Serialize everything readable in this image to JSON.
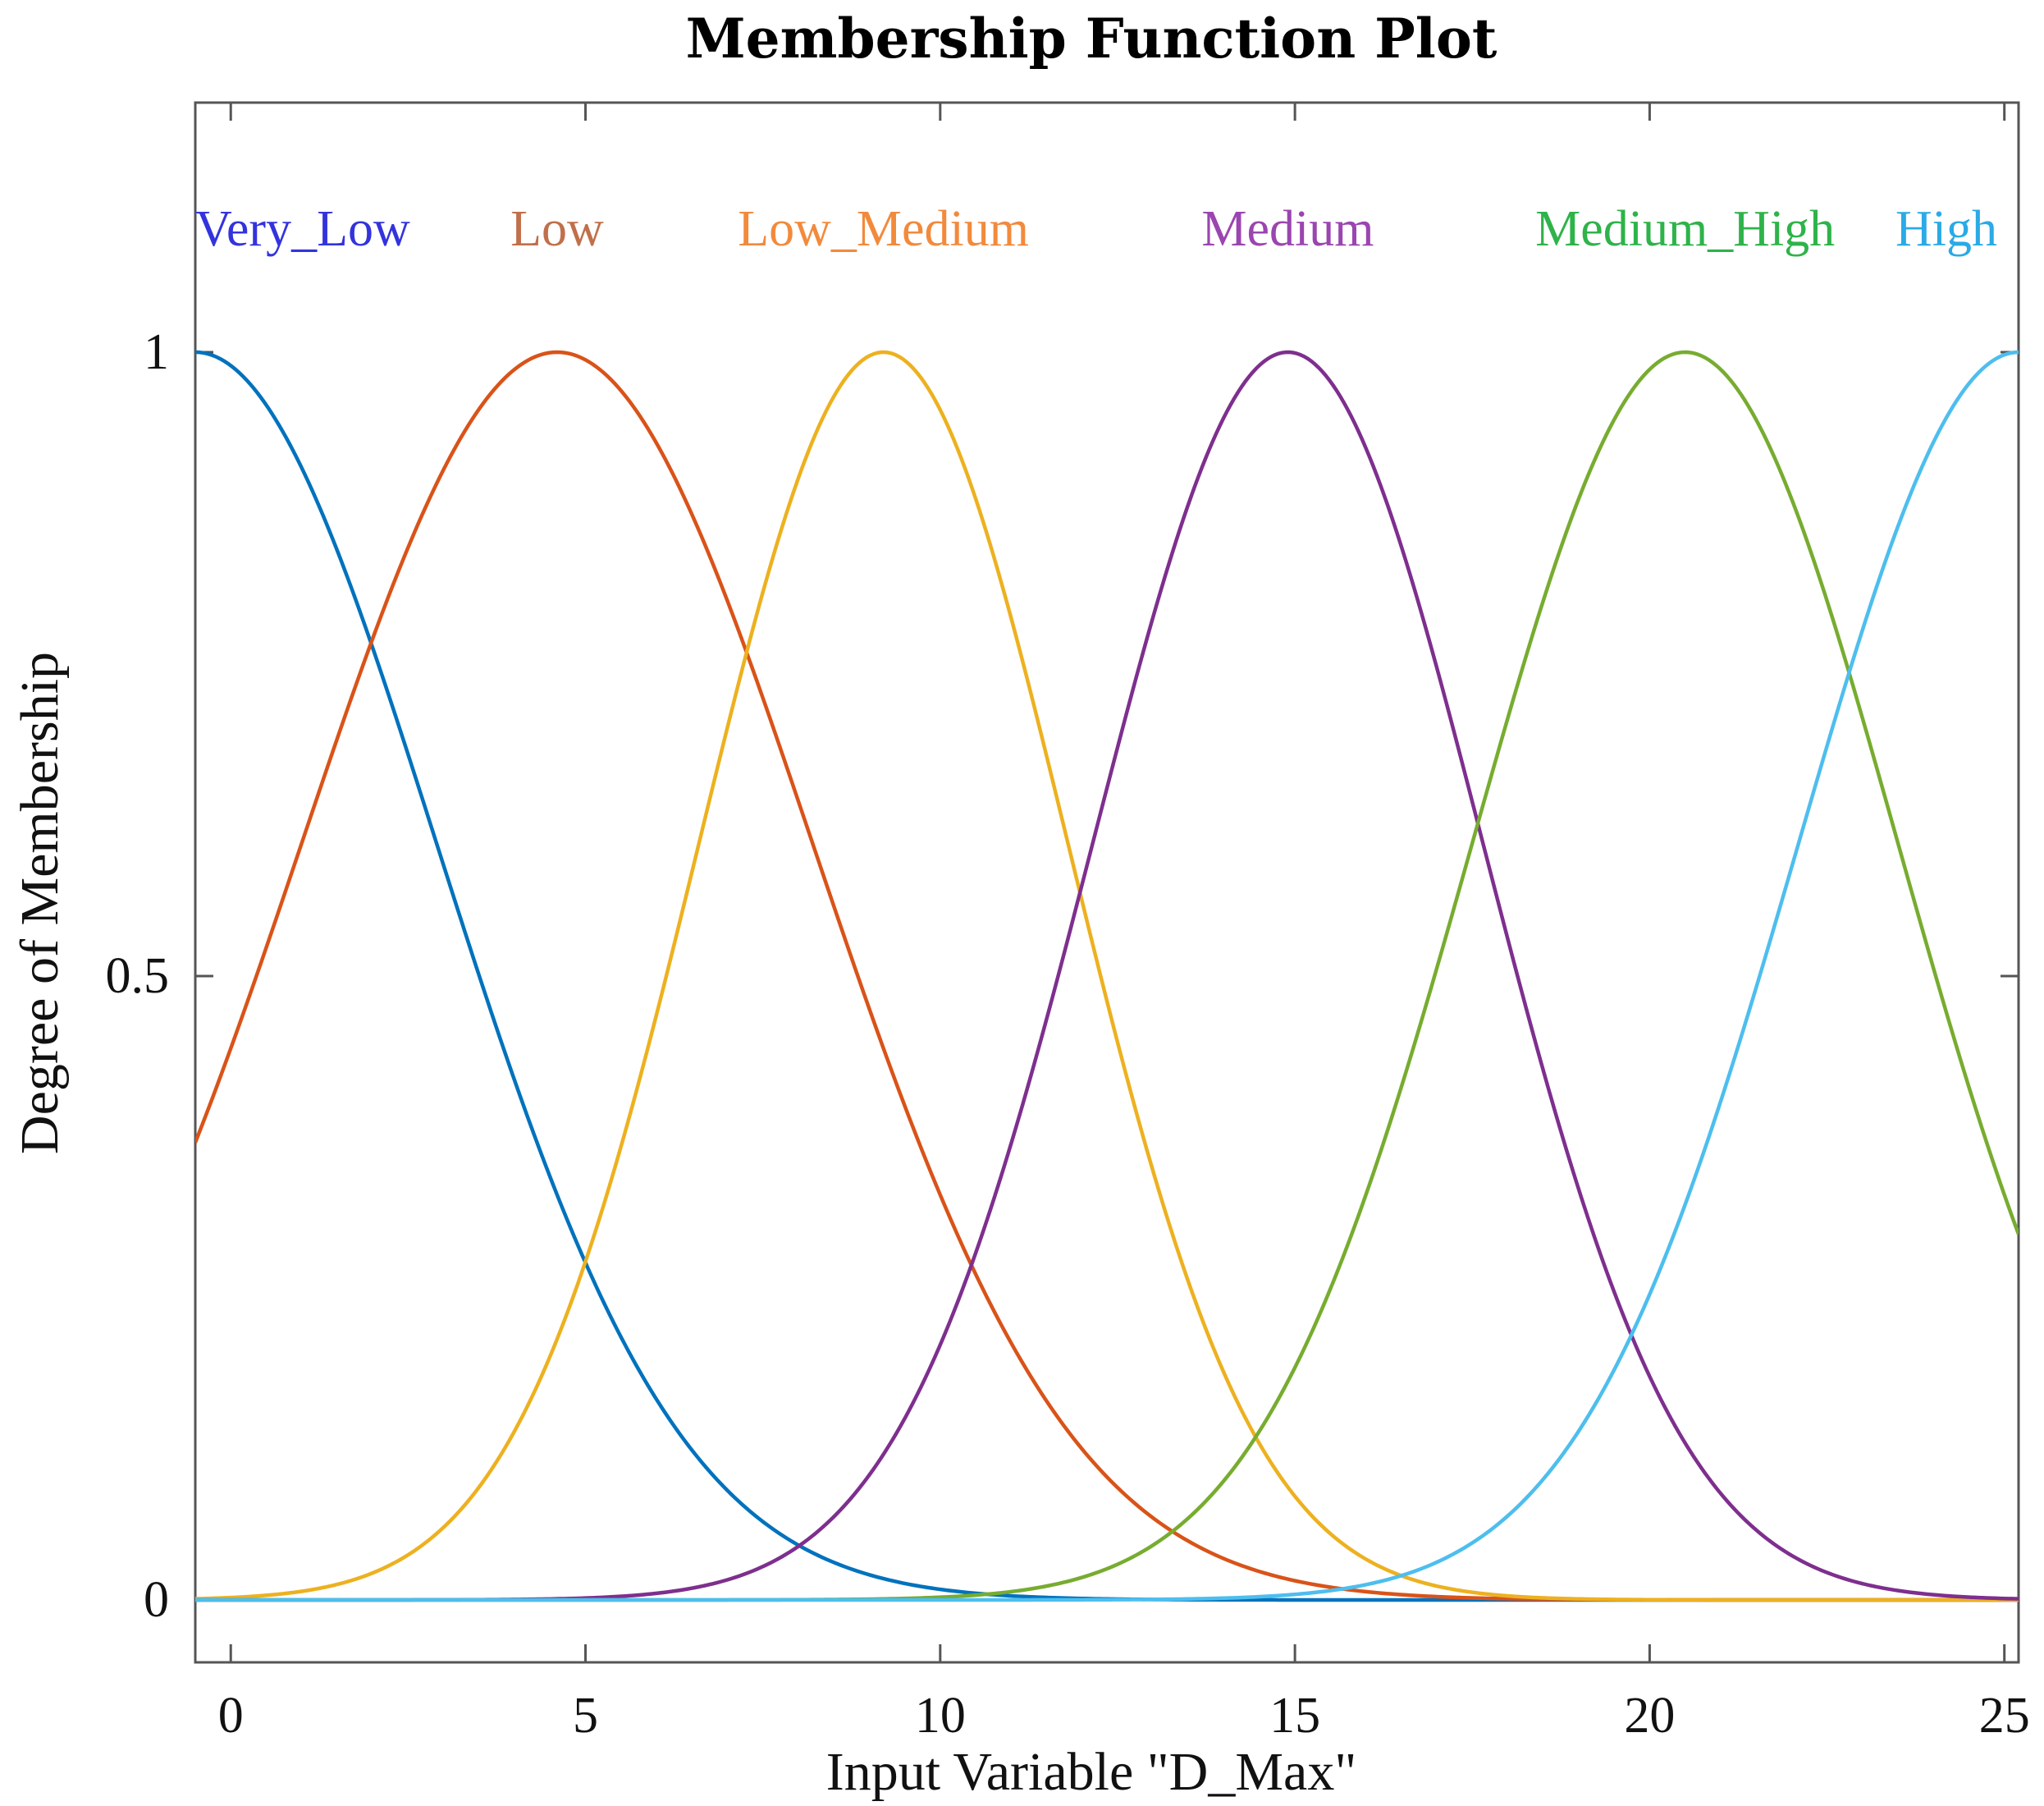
{
  "chart_data": {
    "type": "line",
    "title": "Membership Function Plot",
    "xlabel": "Input Variable \"D_Max\"",
    "ylabel": "Degree of Membership",
    "xlim": [
      -0.5,
      25.2
    ],
    "ylim": [
      -0.05,
      1.2
    ],
    "xticks": [
      0,
      5,
      10,
      15,
      20,
      25
    ],
    "xtick_labels": [
      "0",
      "5",
      "10",
      "15",
      "20",
      "25"
    ],
    "yticks": [
      0,
      0.5,
      1
    ],
    "ytick_labels": [
      "0",
      "0.5",
      "1"
    ],
    "function": "gaussmf",
    "series": [
      {
        "name": "Very_Low",
        "mean": -0.5,
        "sigma": 3.4,
        "line_color": "#0072BD",
        "label_color": "#3333DD"
      },
      {
        "name": "Low",
        "mean": 4.6,
        "sigma": 3.6,
        "line_color": "#D95319",
        "label_color": "#C0704A"
      },
      {
        "name": "Low_Medium",
        "mean": 9.2,
        "sigma": 2.6,
        "line_color": "#EDB120",
        "label_color": "#F28A3C"
      },
      {
        "name": "Medium",
        "mean": 14.9,
        "sigma": 2.75,
        "line_color": "#7E2F8E",
        "label_color": "#9B45B0"
      },
      {
        "name": "Medium_High",
        "mean": 20.5,
        "sigma": 3.0,
        "line_color": "#77AC30",
        "label_color": "#2EB34A"
      },
      {
        "name": "High",
        "mean": 25.2,
        "sigma": 3.1,
        "line_color": "#4DBEEE",
        "label_color": "#2AAAE6"
      }
    ]
  }
}
